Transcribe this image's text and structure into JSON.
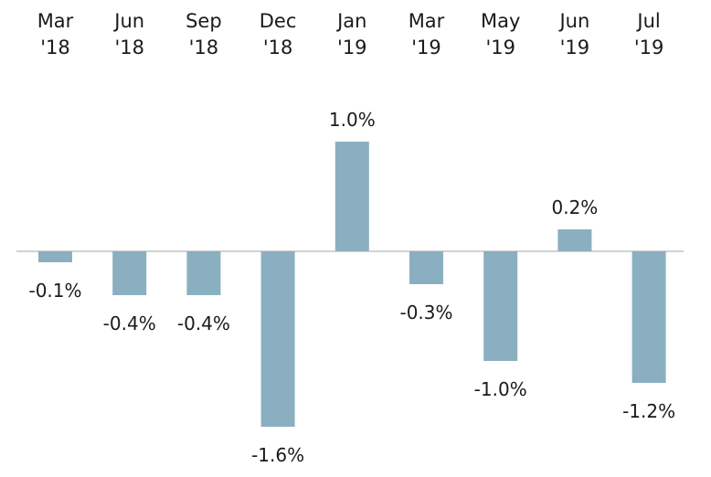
{
  "chart_data": {
    "type": "bar",
    "title": "",
    "xlabel": "",
    "ylabel": "",
    "categories": [
      [
        "Mar",
        "'18"
      ],
      [
        "Jun",
        "'18"
      ],
      [
        "Sep",
        "'18"
      ],
      [
        "Dec",
        "'18"
      ],
      [
        "Jan",
        "'19"
      ],
      [
        "Mar",
        "'19"
      ],
      [
        "May",
        "'19"
      ],
      [
        "Jun",
        "'19"
      ],
      [
        "Jul",
        "'19"
      ]
    ],
    "values": [
      -0.1,
      -0.4,
      -0.4,
      -1.6,
      1.0,
      -0.3,
      -1.0,
      0.2,
      -1.2
    ],
    "value_labels": [
      "-0.1%",
      "-0.4%",
      "-0.4%",
      "-1.6%",
      "1.0%",
      "-0.3%",
      "-1.0%",
      "0.2%",
      "-1.2%"
    ],
    "ylim": [
      -1.6,
      1.0
    ],
    "grid": false,
    "legend": "none",
    "colors": {
      "bar": "#8aafc1",
      "baseline": "#a6a6a6",
      "text": "#1a1a1a"
    }
  }
}
